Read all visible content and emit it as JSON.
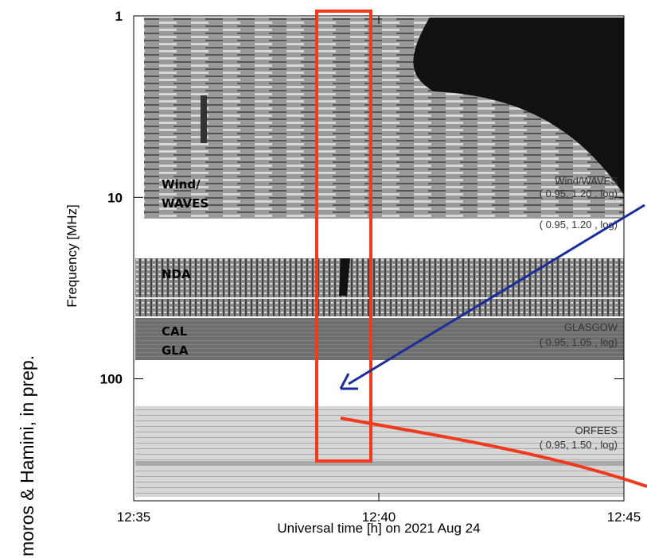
{
  "chart_data": {
    "type": "spectrogram",
    "xlabel": "Universal time [h] on 2021 Aug 24",
    "ylabel": "Frequency [MHz]",
    "xlim": [
      755,
      765
    ],
    "xticks": [
      {
        "value": 755,
        "label": "12:35"
      },
      {
        "value": 760,
        "label": "12:40"
      },
      {
        "value": 765,
        "label": "12:45"
      }
    ],
    "ylim": [
      1,
      470
    ],
    "ylog": true,
    "yinverted": true,
    "yticks": [
      1,
      10,
      100
    ],
    "instruments": {
      "wind_label": [
        "Wind/",
        "WAVES"
      ],
      "wind_name": "Wind/WAVES",
      "wind_params": "( 0.95,  1.20 , log)",
      "wind_params_repeat": "( 0.95,  1.20 , log)",
      "nda_label": "NDA",
      "glasgow_label": [
        "CAL",
        "GLA"
      ],
      "glasgow_name": "GLASGOW",
      "glasgow_params": "( 0.95,  1.05 , log)",
      "orfees_name": "ORFEES",
      "orfees_params": "( 0.95,  1.50 , log)"
    },
    "credit": "moros & Hamini, in prep."
  }
}
